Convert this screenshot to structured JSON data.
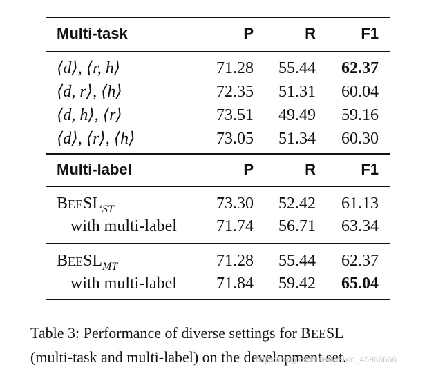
{
  "table": {
    "multitask": {
      "header": {
        "label": "Multi-task",
        "p": "P",
        "r": "R",
        "f1": "F1"
      },
      "rows": [
        {
          "setting": "⟨d⟩, ⟨r, h⟩",
          "p": "71.28",
          "r": "55.44",
          "f1": "62.37",
          "f1_bold": true
        },
        {
          "setting": "⟨d, r⟩, ⟨h⟩",
          "p": "72.35",
          "r": "51.31",
          "f1": "60.04"
        },
        {
          "setting": "⟨d, h⟩, ⟨r⟩",
          "p": "73.51",
          "r": "49.49",
          "f1": "59.16"
        },
        {
          "setting": "⟨d⟩, ⟨r⟩, ⟨h⟩",
          "p": "73.05",
          "r": "51.34",
          "f1": "60.30"
        }
      ]
    },
    "multilabel": {
      "header": {
        "label": "Multi-label",
        "p": "P",
        "r": "R",
        "f1": "F1"
      },
      "groups": [
        {
          "model_B": "B",
          "model_EE": "EE",
          "model_SL": "SL",
          "model_sub": "ST",
          "base": {
            "p": "73.30",
            "r": "52.42",
            "f1": "61.13"
          },
          "variant": {
            "label": "with multi-label",
            "p": "71.74",
            "r": "56.71",
            "f1": "63.34"
          }
        },
        {
          "model_B": "B",
          "model_EE": "EE",
          "model_SL": "SL",
          "model_sub": "MT",
          "base": {
            "p": "71.28",
            "r": "55.44",
            "f1": "62.37"
          },
          "variant": {
            "label": "with multi-label",
            "p": "71.84",
            "r": "59.42",
            "f1": "65.04",
            "f1_bold": true
          }
        }
      ]
    }
  },
  "caption": {
    "line1_prefix": "Table 3:   Performance of diverse settings for B",
    "line1_sc": "EE",
    "line1_suffix": "SL",
    "line2": "(multi-task and multi-label) on the development set."
  },
  "watermark": "https://blog.csdn.net/weixin_45966666"
}
